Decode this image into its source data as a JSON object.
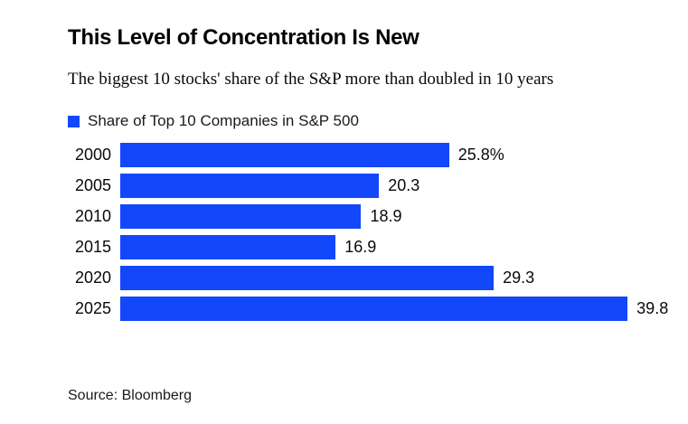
{
  "page": {
    "title": "This Level of Concentration Is New",
    "subtitle": "The biggest 10 stocks' share of the S&P more than doubled in 10 years",
    "source": "Source: Bloomberg"
  },
  "legend": {
    "label": "Share of Top 10 Companies in S&P 500"
  },
  "colors": {
    "bar": "#1247FA",
    "text": "#000000",
    "background": "#ffffff"
  },
  "chart_data": {
    "type": "bar",
    "orientation": "horizontal",
    "title": "This Level of Concentration Is New",
    "subtitle": "The biggest 10 stocks' share of the S&P more than doubled in 10 years",
    "legend": [
      "Share of Top 10 Companies in S&P 500"
    ],
    "categories": [
      "2000",
      "2005",
      "2010",
      "2015",
      "2020",
      "2025"
    ],
    "values": [
      25.8,
      20.3,
      18.9,
      16.9,
      29.3,
      39.8
    ],
    "display_values": [
      "25.8%",
      "20.3",
      "18.9",
      "16.9",
      "29.3",
      "39.8"
    ],
    "unit": "percent of S&P 500",
    "xlim": [
      0,
      40
    ],
    "grid": false,
    "legend_position": "top-left",
    "source": "Source: Bloomberg"
  }
}
